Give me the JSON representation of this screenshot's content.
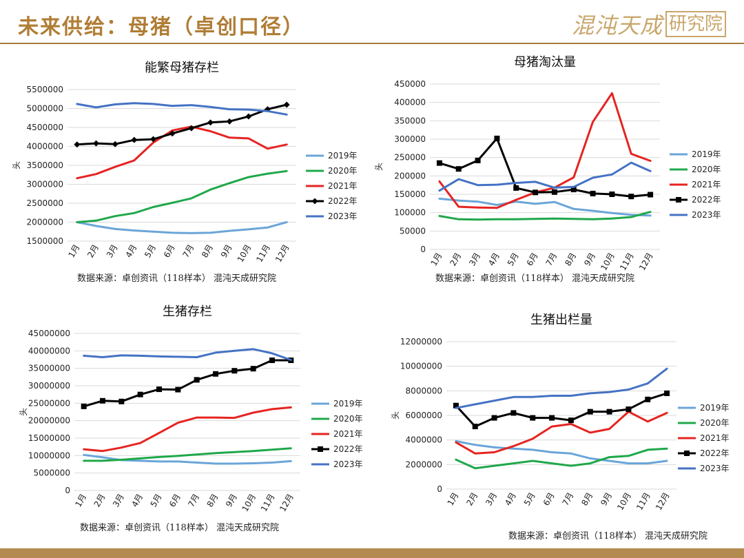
{
  "page": {
    "title": "未来供给：母猪（卓创口径）",
    "logo_script": "混沌天成",
    "logo_box": "研究院"
  },
  "colors": {
    "header_text": "#b07d35",
    "rule": "#a87a3c",
    "s2019": "#6aa5d8",
    "s2020": "#1fa84a",
    "s2021": "#e52421",
    "s2022": "#000000",
    "s2023": "#4472c4"
  },
  "chart_data": [
    {
      "id": "sow-inventory",
      "type": "line",
      "title": "能繁母猪存栏",
      "ylabel": "头",
      "source": "数据来源：卓创资讯（118样本） 混沌天成研究院",
      "categories": [
        "1月",
        "2月",
        "3月",
        "4月",
        "5月",
        "6月",
        "7月",
        "8月",
        "9月",
        "10月",
        "11月",
        "12月"
      ],
      "ylim": [
        1500000,
        5500000
      ],
      "yticks": [
        1500000,
        2000000,
        2500000,
        3000000,
        3500000,
        4000000,
        4500000,
        5000000,
        5500000
      ],
      "grid": true,
      "legend_position": "right",
      "series": [
        {
          "name": "2019年",
          "color": "#6aa5d8",
          "marker": "none",
          "values": [
            2000000,
            1900000,
            1820000,
            1780000,
            1750000,
            1720000,
            1710000,
            1720000,
            1770000,
            1810000,
            1860000,
            2000000
          ]
        },
        {
          "name": "2020年",
          "color": "#1fa84a",
          "marker": "none",
          "values": [
            2000000,
            2040000,
            2160000,
            2240000,
            2400000,
            2510000,
            2630000,
            2860000,
            3030000,
            3190000,
            3280000,
            3350000
          ]
        },
        {
          "name": "2021年",
          "color": "#e52421",
          "marker": "none",
          "values": [
            3160000,
            3270000,
            3460000,
            3630000,
            4100000,
            4420000,
            4520000,
            4400000,
            4230000,
            4210000,
            3940000,
            4050000
          ]
        },
        {
          "name": "2022年",
          "color": "#000000",
          "marker": "diamond",
          "values": [
            4050000,
            4080000,
            4060000,
            4170000,
            4190000,
            4340000,
            4480000,
            4630000,
            4660000,
            4790000,
            4980000,
            5100000
          ]
        },
        {
          "name": "2023年",
          "color": "#4472c4",
          "marker": "none",
          "values": [
            5120000,
            5030000,
            5110000,
            5140000,
            5120000,
            5070000,
            5090000,
            5040000,
            4980000,
            4970000,
            4930000,
            4840000
          ]
        }
      ]
    },
    {
      "id": "sow-culling",
      "type": "line",
      "title": "母猪淘汰量",
      "ylabel": "头",
      "source": "数据来源：卓创资讯（118样本） 混沌天成研究院",
      "categories": [
        "1月",
        "2月",
        "3月",
        "4月",
        "5月",
        "6月",
        "7月",
        "8月",
        "9月",
        "10月",
        "11月",
        "12月"
      ],
      "ylim": [
        0,
        450000
      ],
      "yticks": [
        0,
        50000,
        100000,
        150000,
        200000,
        250000,
        300000,
        350000,
        400000,
        450000
      ],
      "grid": true,
      "legend_position": "right",
      "series": [
        {
          "name": "2019年",
          "color": "#6aa5d8",
          "marker": "none",
          "values": [
            138000,
            133000,
            130000,
            121000,
            130000,
            124000,
            129000,
            110000,
            105000,
            99000,
            94000,
            92000
          ]
        },
        {
          "name": "2020年",
          "color": "#1fa84a",
          "marker": "none",
          "values": [
            91000,
            82000,
            81000,
            82000,
            82000,
            83000,
            84000,
            83000,
            82000,
            84000,
            88000,
            102000
          ]
        },
        {
          "name": "2021年",
          "color": "#e52421",
          "marker": "none",
          "values": [
            185000,
            116000,
            114000,
            113000,
            135000,
            155000,
            168000,
            196000,
            347000,
            425000,
            260000,
            241000
          ]
        },
        {
          "name": "2022年",
          "color": "#000000",
          "marker": "square",
          "values": [
            235000,
            219000,
            242000,
            302000,
            167000,
            155000,
            156000,
            163000,
            152000,
            150000,
            144000,
            149000
          ]
        },
        {
          "name": "2023年",
          "color": "#4472c4",
          "marker": "none",
          "values": [
            160000,
            191000,
            175000,
            176000,
            181000,
            184000,
            168000,
            170000,
            195000,
            204000,
            236000,
            213000
          ]
        }
      ]
    },
    {
      "id": "hog-inventory",
      "type": "line",
      "title": "生猪存栏",
      "ylabel": "头",
      "source": "数据来源：卓创资讯（118样本） 混沌天成研究院",
      "categories": [
        "1月",
        "2月",
        "3月",
        "4月",
        "5月",
        "6月",
        "7月",
        "8月",
        "9月",
        "10月",
        "11月",
        "12月"
      ],
      "ylim": [
        0,
        45000000
      ],
      "yticks": [
        0,
        5000000,
        10000000,
        15000000,
        20000000,
        25000000,
        30000000,
        35000000,
        40000000,
        45000000
      ],
      "grid": true,
      "legend_position": "right",
      "series": [
        {
          "name": "2019年",
          "color": "#6aa5d8",
          "marker": "none",
          "values": [
            10200000,
            9500000,
            8700000,
            8500000,
            8300000,
            8300000,
            8000000,
            7700000,
            7700000,
            7800000,
            8000000,
            8400000
          ]
        },
        {
          "name": "2020年",
          "color": "#1fa84a",
          "marker": "none",
          "values": [
            8500000,
            8500000,
            8800000,
            9200000,
            9600000,
            9900000,
            10300000,
            10700000,
            11000000,
            11300000,
            11700000,
            12100000
          ]
        },
        {
          "name": "2021年",
          "color": "#e52421",
          "marker": "none",
          "values": [
            11800000,
            11300000,
            12300000,
            13600000,
            16500000,
            19400000,
            20900000,
            20900000,
            20800000,
            22300000,
            23300000,
            23800000
          ]
        },
        {
          "name": "2022年",
          "color": "#000000",
          "marker": "square",
          "values": [
            24100000,
            25700000,
            25500000,
            27500000,
            29000000,
            28900000,
            31700000,
            33400000,
            34300000,
            34900000,
            37300000,
            37300000
          ]
        },
        {
          "name": "2023年",
          "color": "#4472c4",
          "marker": "none",
          "values": [
            38600000,
            38200000,
            38700000,
            38600000,
            38400000,
            38300000,
            38200000,
            39500000,
            40000000,
            40500000,
            39300000,
            37400000
          ]
        }
      ]
    },
    {
      "id": "hog-slaughter",
      "type": "line",
      "title": "生猪出栏量",
      "ylabel": "头",
      "source": "数据来源：卓创资讯（118样本） 混沌天成研究院",
      "categories": [
        "1月",
        "2月",
        "3月",
        "4月",
        "5月",
        "6月",
        "7月",
        "8月",
        "9月",
        "10月",
        "11月",
        "12月"
      ],
      "ylim": [
        0,
        12000000
      ],
      "yticks": [
        0,
        2000000,
        4000000,
        6000000,
        8000000,
        10000000,
        12000000
      ],
      "grid": true,
      "legend_position": "right",
      "series": [
        {
          "name": "2019年",
          "color": "#6aa5d8",
          "marker": "none",
          "values": [
            3900000,
            3600000,
            3400000,
            3300000,
            3200000,
            3000000,
            2900000,
            2500000,
            2300000,
            2100000,
            2100000,
            2300000
          ]
        },
        {
          "name": "2020年",
          "color": "#1fa84a",
          "marker": "none",
          "values": [
            2400000,
            1700000,
            1900000,
            2100000,
            2300000,
            2100000,
            1900000,
            2100000,
            2600000,
            2700000,
            3200000,
            3300000
          ]
        },
        {
          "name": "2021年",
          "color": "#e52421",
          "marker": "none",
          "values": [
            3800000,
            2900000,
            3000000,
            3500000,
            4100000,
            5100000,
            5300000,
            4600000,
            4900000,
            6300000,
            5500000,
            6200000
          ]
        },
        {
          "name": "2022年",
          "color": "#000000",
          "marker": "square",
          "values": [
            6800000,
            5100000,
            5800000,
            6200000,
            5800000,
            5800000,
            5600000,
            6300000,
            6300000,
            6500000,
            7300000,
            7800000
          ]
        },
        {
          "name": "2023年",
          "color": "#4472c4",
          "marker": "none",
          "values": [
            6600000,
            6900000,
            7200000,
            7500000,
            7500000,
            7600000,
            7600000,
            7800000,
            7900000,
            8100000,
            8600000,
            9800000
          ]
        }
      ]
    }
  ]
}
